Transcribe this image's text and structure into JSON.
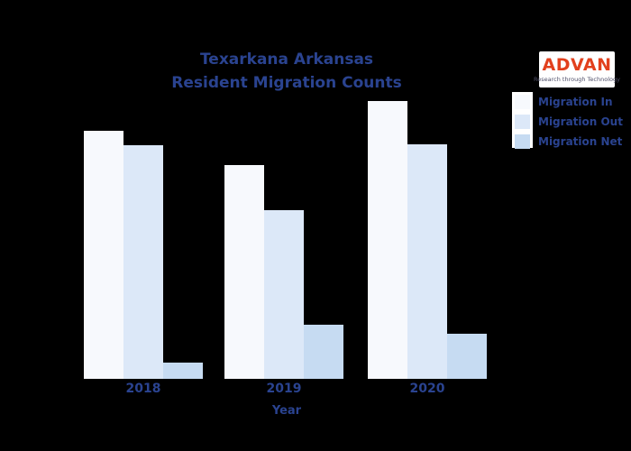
{
  "title": {
    "line1": "Texarkana Arkansas",
    "line2": "Resident Migration Counts"
  },
  "logo": {
    "name": "ADVAN",
    "tagline": "Research through Technology",
    "brand_color": "#e2401d",
    "background": "#ffffff"
  },
  "legend": {
    "items": [
      {
        "label": "Migration In",
        "color": "#f7f9fd"
      },
      {
        "label": "Migration Out",
        "color": "#dce8f8"
      },
      {
        "label": "Migration Net",
        "color": "#c6dbf2"
      }
    ]
  },
  "x_axis": {
    "title": "Year"
  },
  "colors": {
    "background": "#000000",
    "text": "#2a4390"
  },
  "chart_data": {
    "type": "bar",
    "title": "Texarkana Arkansas Resident Migration Counts",
    "categories": [
      "2018",
      "2019",
      "2020"
    ],
    "series": [
      {
        "name": "Migration In",
        "color": "#f7f9fd",
        "values": [
          2750,
          2370,
          3080
        ]
      },
      {
        "name": "Migration Out",
        "color": "#dce8f8",
        "values": [
          2590,
          1870,
          2600
        ]
      },
      {
        "name": "Migration Net",
        "color": "#c6dbf2",
        "values": [
          180,
          600,
          500
        ]
      }
    ],
    "xlabel": "Year",
    "ylabel": "",
    "ylim": [
      0,
      3400
    ],
    "grid": false,
    "y_axis_labels_visible": false,
    "legend_position": "upper right"
  }
}
